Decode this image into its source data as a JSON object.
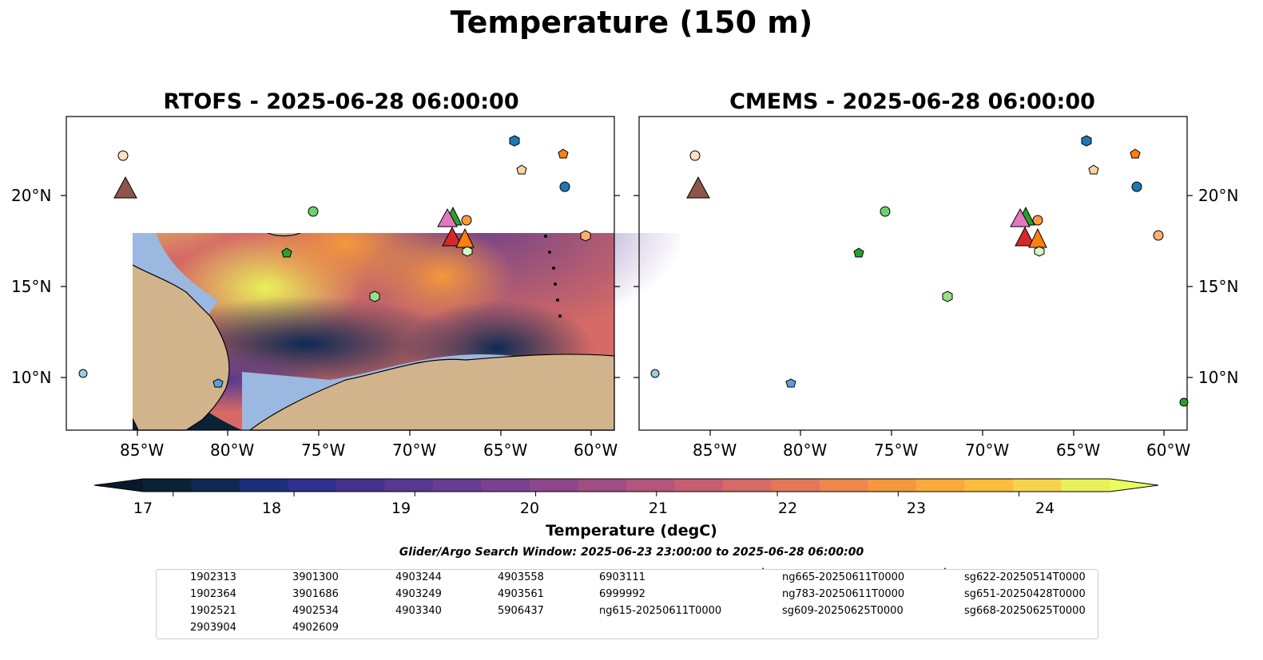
{
  "figure": {
    "title": "Temperature (150 m)",
    "window_label": "Glider/Argo Search Window: 2025-06-23 23:00:00 to 2025-06-28 06:00:00"
  },
  "maps": [
    {
      "title": "RTOFS - 2025-06-28 06:00:00"
    },
    {
      "title": "CMEMS - 2025-06-28 06:00:00"
    }
  ],
  "axes": {
    "lon_ticks": [
      "85°W",
      "80°W",
      "75°W",
      "70°W",
      "65°W",
      "60°W"
    ],
    "lat_ticks": [
      "20°N",
      "15°N",
      "10°N"
    ]
  },
  "colorbar": {
    "label": "Temperature (degC)",
    "ticks": [
      "17",
      "18",
      "19",
      "20",
      "21",
      "22",
      "23",
      "24"
    ],
    "min": 16.75,
    "max": 24.75,
    "colors": [
      "#0b2236",
      "#0e2a54",
      "#1c2f7a",
      "#2f2f8c",
      "#45328f",
      "#573891",
      "#683c90",
      "#7a418f",
      "#8d468b",
      "#a04d84",
      "#b3557c",
      "#c55e72",
      "#d56a66",
      "#e2785a",
      "#ed874b",
      "#f5983d",
      "#f9aa38",
      "#fbbd3c",
      "#f6d34a",
      "#e9f05a"
    ]
  },
  "legend": {
    "items": [
      {
        "label": "1902313",
        "marker": "circle",
        "color": "#1f77b4"
      },
      {
        "label": "1902364",
        "marker": "hexagon",
        "color": "#1f77b4"
      },
      {
        "label": "1902521",
        "marker": "pentagon",
        "color": "#5aa0e0"
      },
      {
        "label": "2903904",
        "marker": "circle",
        "color": "#9ecae1"
      },
      {
        "label": "3901300",
        "marker": "hexagon",
        "color": "#c6e3f7"
      },
      {
        "label": "3901686",
        "marker": "pentagon",
        "color": "#ff7f0e"
      },
      {
        "label": "4902534",
        "marker": "circle",
        "color": "#ff9a3c"
      },
      {
        "label": "4902609",
        "marker": "hexagon",
        "color": "#ffb070"
      },
      {
        "label": "4903244",
        "marker": "pentagon",
        "color": "#ffd0a0"
      },
      {
        "label": "4903249",
        "marker": "circle",
        "color": "#ffe0c0"
      },
      {
        "label": "4903340",
        "marker": "hexagon",
        "color": "#2ca02c"
      },
      {
        "label": "4903558",
        "marker": "pentagon",
        "color": "#2ca02c"
      },
      {
        "label": "4903561",
        "marker": "circle",
        "color": "#6fcf6f"
      },
      {
        "label": "5906437",
        "marker": "hexagon",
        "color": "#98df8a"
      },
      {
        "label": "6903111",
        "marker": "pentagon",
        "color": "#d4f5c8"
      },
      {
        "label": "6999992",
        "marker": "circle",
        "color": "#d62728"
      },
      {
        "label": "ng615-20250611T0000",
        "marker": "triangle",
        "color": "#1f77b4"
      },
      {
        "label": "ng665-20250611T0000",
        "marker": "triangle",
        "color": "#ff7f0e"
      },
      {
        "label": "ng783-20250611T0000",
        "marker": "triangle",
        "color": "#2ca02c"
      },
      {
        "label": "sg609-20250625T0000",
        "marker": "triangle",
        "color": "#d62728"
      },
      {
        "label": "sg622-20250514T0000",
        "marker": "triangle",
        "color": "#9467bd"
      },
      {
        "label": "sg651-20250428T0000",
        "marker": "triangle",
        "color": "#8c564b"
      },
      {
        "label": "sg668-20250625T0000",
        "marker": "triangle",
        "color": "#e377c2"
      }
    ]
  },
  "colors": {
    "land": "#d2b48c",
    "shelf": "#9bb8e0",
    "deep_cold": "#0b2236"
  }
}
